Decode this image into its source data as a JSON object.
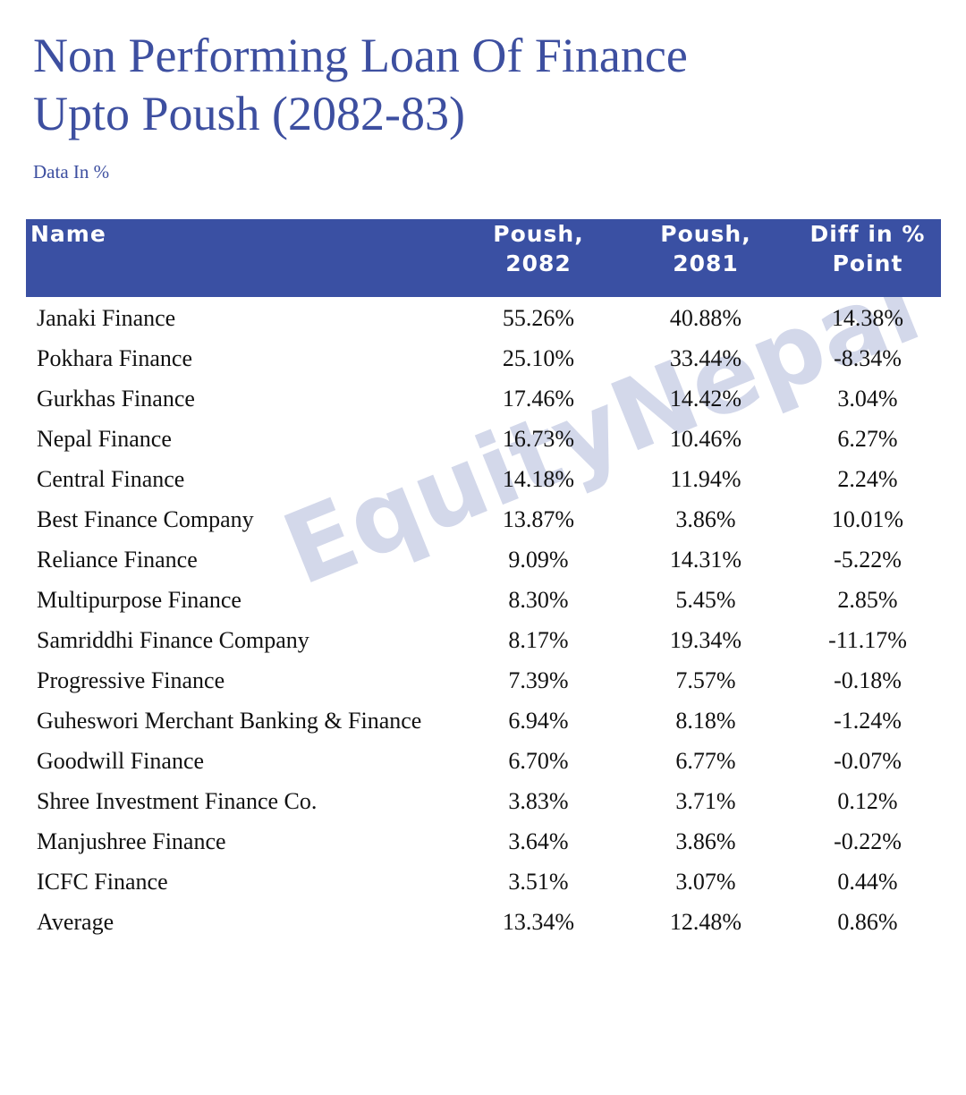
{
  "header": {
    "title_lines": [
      "Non Performing Loan Of Finance",
      "Upto Poush (2082-83)"
    ],
    "note": "Data In %"
  },
  "watermark": {
    "brand": "EquityNepal"
  },
  "table": {
    "columns": [
      [
        "Name"
      ],
      [
        "Poush,",
        "2082"
      ],
      [
        "Poush,",
        "2081"
      ],
      [
        "Diff in %",
        "Point"
      ]
    ],
    "rows": [
      [
        "Janaki Finance",
        "55.26%",
        "40.88%",
        "14.38%"
      ],
      [
        "Pokhara Finance",
        "25.10%",
        "33.44%",
        "-8.34%"
      ],
      [
        "Gurkhas Finance",
        "17.46%",
        "14.42%",
        "3.04%"
      ],
      [
        "Nepal Finance",
        "16.73%",
        "10.46%",
        "6.27%"
      ],
      [
        "Central Finance",
        "14.18%",
        "11.94%",
        "2.24%"
      ],
      [
        "Best Finance Company",
        "13.87%",
        "3.86%",
        "10.01%"
      ],
      [
        "Reliance Finance",
        "9.09%",
        "14.31%",
        "-5.22%"
      ],
      [
        "Multipurpose Finance",
        "8.30%",
        "5.45%",
        "2.85%"
      ],
      [
        "Samriddhi Finance Company",
        "8.17%",
        "19.34%",
        "-11.17%"
      ],
      [
        "Progressive Finance",
        "7.39%",
        "7.57%",
        "-0.18%"
      ],
      [
        "Guheswori Merchant Banking & Finance",
        "6.94%",
        "8.18%",
        "-1.24%"
      ],
      [
        "Goodwill Finance",
        "6.70%",
        "6.77%",
        "-0.07%"
      ],
      [
        "Shree Investment Finance Co.",
        "3.83%",
        "3.71%",
        "0.12%"
      ],
      [
        "Manjushree Finance",
        "3.64%",
        "3.86%",
        "-0.22%"
      ],
      [
        "ICFC Finance",
        "3.51%",
        "3.07%",
        "0.44%"
      ],
      [
        "Average",
        "13.34%",
        "12.48%",
        "0.86%"
      ]
    ]
  }
}
